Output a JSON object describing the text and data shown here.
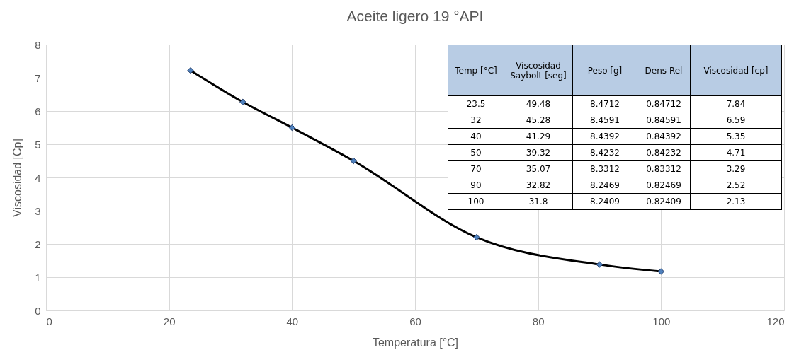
{
  "chart_data": [
    {
      "type": "line",
      "title": "Aceite ligero 19 °API",
      "xlabel": "Temperatura [°C]",
      "ylabel": "Viscosidad [Cp]",
      "x": [
        23.5,
        32,
        40,
        50,
        70,
        90,
        100
      ],
      "series": [
        {
          "color": "#000000",
          "values": [
            7.22,
            6.27,
            5.5,
            4.5,
            2.2,
            1.38,
            1.17
          ]
        }
      ],
      "xlim": [
        0,
        120
      ],
      "xticks": [
        0,
        20,
        40,
        60,
        80,
        100,
        120
      ],
      "ylim": [
        0,
        8
      ],
      "yticks": [
        0,
        1,
        2,
        3,
        4,
        5,
        6,
        7,
        8
      ],
      "grid": true,
      "marker": "diamond",
      "line_style": "solid"
    },
    {
      "type": "other",
      "categories": [
        "Temp [°C]",
        "Viscosidad Saybolt [seg]",
        "Peso [g]",
        "Dens Rel",
        "Viscosidad [cp]"
      ],
      "annotations": [
        "23.5",
        "49.48",
        "8.4712",
        "0.84712",
        "7.84",
        "32",
        "45.28",
        "8.4591",
        "0.84591",
        "6.59",
        "40",
        "41.29",
        "8.4392",
        "0.84392",
        "5.35",
        "50",
        "39.32",
        "8.4232",
        "0.84232",
        "4.71",
        "70",
        "35.07",
        "8.3312",
        "0.83312",
        "3.29",
        "90",
        "32.82",
        "8.2469",
        "0.82469",
        "2.52",
        "100",
        "31.8",
        "8.2409",
        "0.82409",
        "2.13"
      ]
    }
  ]
}
